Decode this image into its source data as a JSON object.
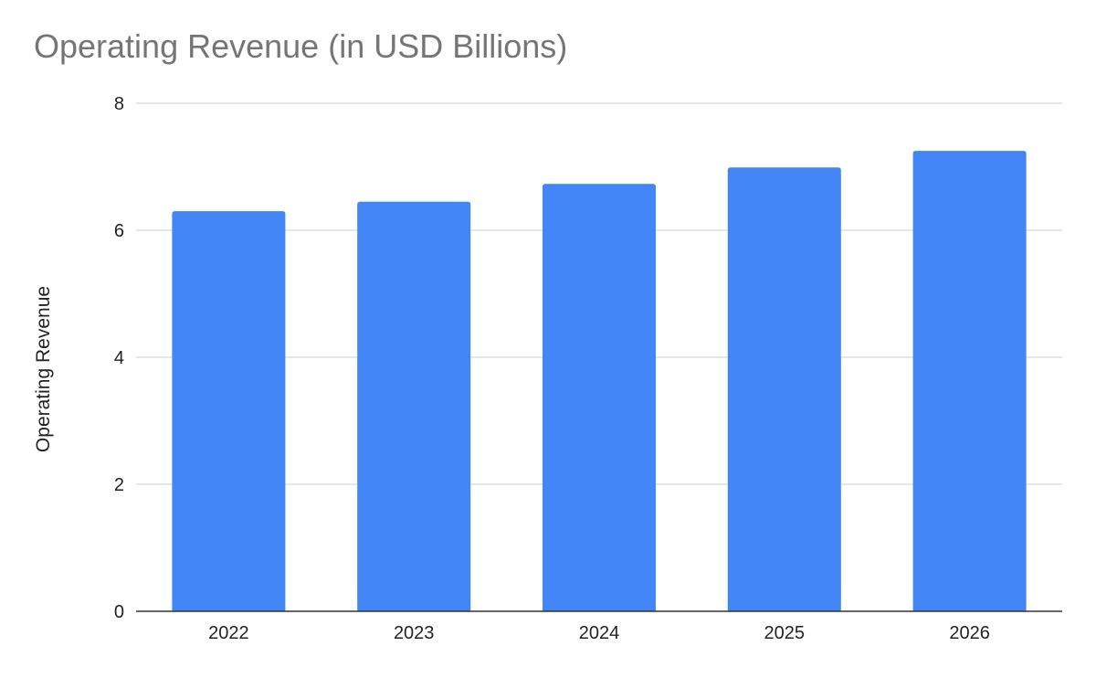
{
  "chart_data": {
    "type": "bar",
    "title": "Operating Revenue (in USD Billions)",
    "xlabel": "",
    "ylabel": "Operating Revenue",
    "categories": [
      "2022",
      "2023",
      "2024",
      "2025",
      "2026"
    ],
    "series": [
      {
        "values": [
          6.3,
          6.45,
          6.73,
          6.99,
          7.25
        ]
      }
    ],
    "ylim": [
      0,
      8
    ],
    "yticks": [
      0,
      2,
      4,
      6,
      8
    ],
    "grid": true,
    "legend": "none",
    "colors": {
      "bar": "#4285f4",
      "grid": "#cccccc",
      "axis": "#333333",
      "title": "#757575",
      "text": "#222222"
    }
  }
}
